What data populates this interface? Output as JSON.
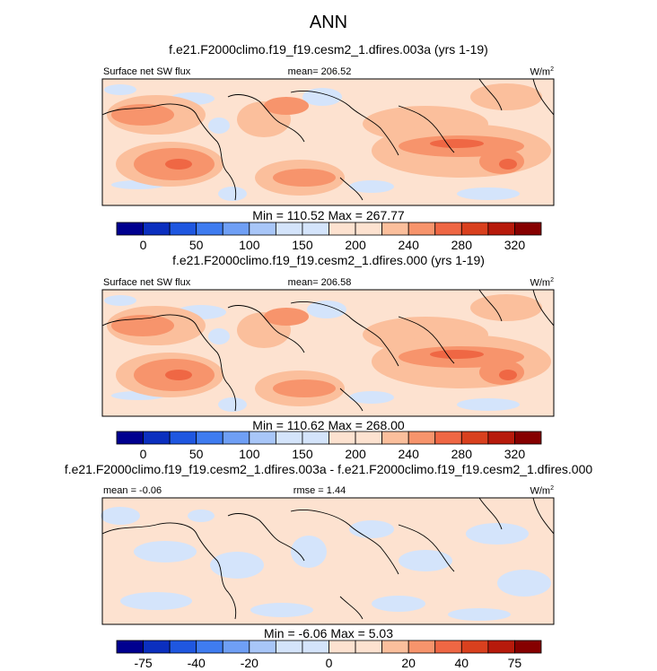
{
  "title": "ANN",
  "colors": {
    "positive_palette": [
      "#00008f",
      "#0b2fbf",
      "#1f57e0",
      "#3f7cf0",
      "#6f9ff5",
      "#a8c6f8",
      "#d4e4fb",
      "#ffffff",
      "#fde2d0",
      "#fbbf9c",
      "#f7946c",
      "#ef6744",
      "#d9401e",
      "#b71a0b",
      "#860000"
    ]
  },
  "panels": [
    {
      "id": "p1",
      "title": "f.e21.F2000climo.f19_f19.cesm2_1.dfires.003a (yrs 1-19)",
      "left_label": "Surface net SW flux",
      "center_label": "mean= 206.52",
      "units": "W/m",
      "units_sup": "2",
      "minmax": "Min = 110.52 Max = 267.77",
      "colorbar_ticks": [
        "0",
        "50",
        "100",
        "150",
        "200",
        "240",
        "280",
        "320"
      ],
      "colorbar_levels": [
        -25,
        0,
        25,
        50,
        75,
        100,
        125,
        150,
        175,
        200,
        220,
        240,
        260,
        280,
        300,
        320,
        340
      ]
    },
    {
      "id": "p2",
      "title": "f.e21.F2000climo.f19_f19.cesm2_1.dfires.000 (yrs 1-19)",
      "left_label": "Surface net SW flux",
      "center_label": "mean= 206.58",
      "units": "W/m",
      "units_sup": "2",
      "minmax": "Min = 110.62 Max = 268.00",
      "colorbar_ticks": [
        "0",
        "50",
        "100",
        "150",
        "200",
        "240",
        "280",
        "320"
      ],
      "colorbar_levels": [
        -25,
        0,
        25,
        50,
        75,
        100,
        125,
        150,
        175,
        200,
        220,
        240,
        260,
        280,
        300,
        320,
        340
      ]
    },
    {
      "id": "p3",
      "title": "f.e21.F2000climo.f19_f19.cesm2_1.dfires.003a - f.e21.F2000climo.f19_f19.cesm2_1.dfires.000",
      "left_label": "mean =  -0.06",
      "center_label": "rmse =  1.44",
      "units": "W/m",
      "units_sup": "2",
      "minmax": "Min =  -6.06 Max =   5.03",
      "colorbar_ticks": [
        "-75",
        "-40",
        "-20",
        "0",
        "20",
        "40",
        "75"
      ],
      "colorbar_levels": [
        -100,
        -75,
        -60,
        -40,
        -30,
        -20,
        -10,
        -5,
        0,
        5,
        10,
        20,
        30,
        40,
        60,
        75,
        100
      ]
    }
  ],
  "chart_data": [
    {
      "type": "heatmap",
      "title": "ANN",
      "subtitle": "f.e21.F2000climo.f19_f19.cesm2_1.dfires.003a (yrs 1-19)",
      "variable": "Surface net SW flux",
      "units": "W/m2",
      "mean": 206.52,
      "min": 110.52,
      "max": 267.77,
      "colorbar_ticks": [
        0,
        50,
        100,
        150,
        200,
        240,
        280,
        320
      ]
    },
    {
      "type": "heatmap",
      "subtitle": "f.e21.F2000climo.f19_f19.cesm2_1.dfires.000 (yrs 1-19)",
      "variable": "Surface net SW flux",
      "units": "W/m2",
      "mean": 206.58,
      "min": 110.62,
      "max": 268.0,
      "colorbar_ticks": [
        0,
        50,
        100,
        150,
        200,
        240,
        280,
        320
      ]
    },
    {
      "type": "heatmap",
      "subtitle": "f.e21.F2000climo.f19_f19.cesm2_1.dfires.003a - f.e21.F2000climo.f19_f19.cesm2_1.dfires.000",
      "units": "W/m2",
      "mean": -0.06,
      "rmse": 1.44,
      "min": -6.06,
      "max": 5.03,
      "colorbar_ticks": [
        -75,
        -40,
        -20,
        0,
        20,
        40,
        75
      ]
    }
  ]
}
